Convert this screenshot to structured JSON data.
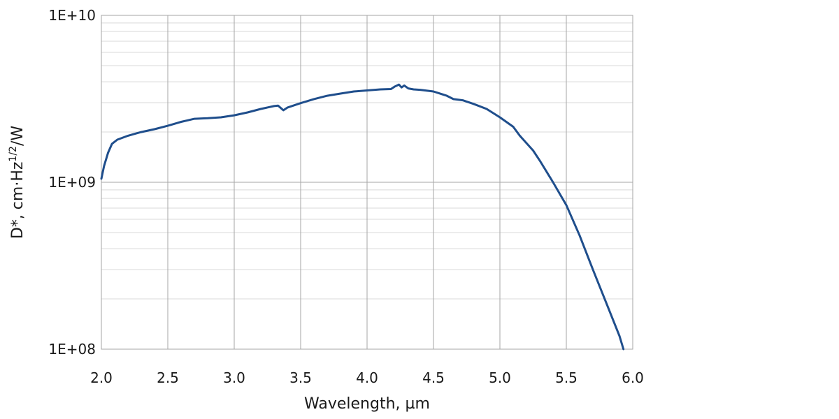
{
  "chart_data": {
    "type": "line",
    "title": "",
    "xlabel": "Wavelength, µm",
    "ylabel_main": "D*, cm·Hz",
    "ylabel_sup": "1/2",
    "ylabel_tail": "/W",
    "xlim": [
      2.0,
      6.0
    ],
    "ylim": [
      100000000,
      10000000000
    ],
    "yscale": "log",
    "grid": true,
    "legend": "none",
    "x_ticks": [
      "2.0",
      "2.5",
      "3.0",
      "3.5",
      "4.0",
      "4.5",
      "5.0",
      "5.5",
      "6.0"
    ],
    "x_tick_values": [
      2.0,
      2.5,
      3.0,
      3.5,
      4.0,
      4.5,
      5.0,
      5.5,
      6.0
    ],
    "y_ticks": [
      "1E+10",
      "1E+09",
      "1E+08"
    ],
    "y_tick_values": [
      10000000000,
      1000000000,
      100000000
    ],
    "line_color": "#1f4e8c",
    "grid_color": "#a6a6a6",
    "minor_grid_color": "#d9d9d9",
    "series": [
      {
        "x": [
          2.0,
          2.02,
          2.05,
          2.08,
          2.12,
          2.2,
          2.25,
          2.3,
          2.4,
          2.5,
          2.6,
          2.65,
          2.7,
          2.8,
          2.9,
          3.0,
          3.1,
          3.2,
          3.3,
          3.33,
          3.37,
          3.4,
          3.5,
          3.6,
          3.7,
          3.8,
          3.9,
          4.0,
          4.1,
          4.18,
          4.21,
          4.24,
          4.26,
          4.28,
          4.31,
          4.35,
          4.4,
          4.5,
          4.6,
          4.65,
          4.72,
          4.8,
          4.9,
          5.0,
          5.1,
          5.15,
          5.25,
          5.3,
          5.4,
          5.5,
          5.6,
          5.7,
          5.8,
          5.9,
          5.93
        ],
        "y": [
          1050000000,
          1250000000,
          1500000000,
          1700000000,
          1800000000,
          1900000000,
          1950000000,
          2000000000,
          2080000000,
          2180000000,
          2300000000,
          2350000000,
          2400000000,
          2420000000,
          2450000000,
          2520000000,
          2620000000,
          2750000000,
          2860000000,
          2880000000,
          2700000000,
          2800000000,
          2980000000,
          3150000000,
          3300000000,
          3400000000,
          3500000000,
          3550000000,
          3600000000,
          3620000000,
          3750000000,
          3850000000,
          3700000000,
          3800000000,
          3650000000,
          3600000000,
          3580000000,
          3500000000,
          3300000000,
          3150000000,
          3100000000,
          2950000000,
          2750000000,
          2450000000,
          2150000000,
          1900000000,
          1550000000,
          1350000000,
          1000000000,
          730000000,
          480000000,
          300000000,
          190000000,
          120000000,
          100000000
        ]
      }
    ]
  }
}
